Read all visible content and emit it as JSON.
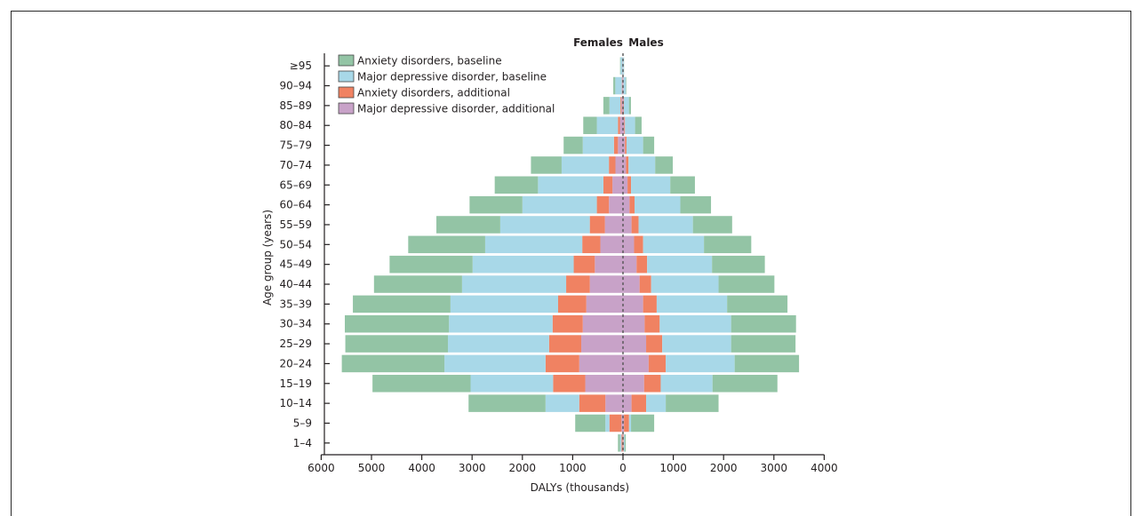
{
  "chart_data": {
    "type": "bar",
    "subtype": "population-pyramid-stacked",
    "xlabel": "DALYs (thousands)",
    "ylabel": "Age group (years)",
    "xlim": [
      -6000,
      4000
    ],
    "x_ticks": [
      -6000,
      -5000,
      -4000,
      -3000,
      -2000,
      -1000,
      0,
      1000,
      2000,
      3000,
      4000
    ],
    "x_tick_labels": [
      "6000",
      "5000",
      "4000",
      "3000",
      "2000",
      "1000",
      "0",
      "1000",
      "2000",
      "3000",
      "4000"
    ],
    "sides": {
      "left": "Females",
      "right": "Males"
    },
    "legend_position": "top-left",
    "categories": [
      "1–4",
      "5–9",
      "10–14",
      "15–19",
      "20–24",
      "25–29",
      "30–34",
      "35–39",
      "40–44",
      "45–49",
      "50–54",
      "55–59",
      "60–64",
      "65–69",
      "70–74",
      "75–79",
      "80–84",
      "85–89",
      "90–94",
      "≥95"
    ],
    "series": [
      {
        "name": "Major depressive disorder, additional",
        "color": "#c8a2c8",
        "female": [
          10,
          30,
          350,
          750,
          870,
          830,
          800,
          730,
          660,
          560,
          450,
          360,
          280,
          210,
          150,
          100,
          60,
          30,
          15,
          5
        ],
        "male": [
          5,
          20,
          170,
          420,
          510,
          460,
          430,
          400,
          330,
          270,
          220,
          170,
          130,
          90,
          60,
          40,
          25,
          10,
          5,
          2
        ]
      },
      {
        "name": "Anxiety disorders, additional",
        "color": "#f08262",
        "female": [
          20,
          240,
          520,
          640,
          670,
          640,
          600,
          560,
          470,
          420,
          360,
          300,
          240,
          180,
          130,
          80,
          40,
          20,
          8,
          3
        ],
        "male": [
          10,
          100,
          290,
          330,
          340,
          320,
          300,
          270,
          230,
          210,
          180,
          140,
          100,
          70,
          50,
          30,
          15,
          8,
          3,
          1
        ]
      },
      {
        "name": "Major depressive disorder, baseline",
        "color": "#a8d8e8",
        "female": [
          30,
          80,
          670,
          1640,
          2010,
          2010,
          2060,
          2140,
          2070,
          2010,
          1930,
          1780,
          1480,
          1300,
          940,
          620,
          420,
          220,
          130,
          40
        ],
        "male": [
          20,
          40,
          390,
          1030,
          1370,
          1370,
          1420,
          1400,
          1340,
          1290,
          1210,
          1080,
          910,
          780,
          530,
          330,
          200,
          100,
          50,
          15
        ]
      },
      {
        "name": "Anxiety disorders, baseline",
        "color": "#93c4a5",
        "female": [
          40,
          600,
          1530,
          1950,
          2040,
          2040,
          2070,
          1940,
          1750,
          1650,
          1530,
          1270,
          1050,
          860,
          610,
          380,
          270,
          120,
          40,
          10
        ],
        "male": [
          20,
          460,
          1050,
          1290,
          1280,
          1280,
          1290,
          1200,
          1110,
          1050,
          940,
          780,
          610,
          490,
          350,
          220,
          130,
          40,
          10,
          3
        ]
      }
    ],
    "legend_order": [
      "Anxiety disorders, baseline",
      "Major depressive disorder, baseline",
      "Anxiety disorders, additional",
      "Major depressive disorder, additional"
    ]
  }
}
